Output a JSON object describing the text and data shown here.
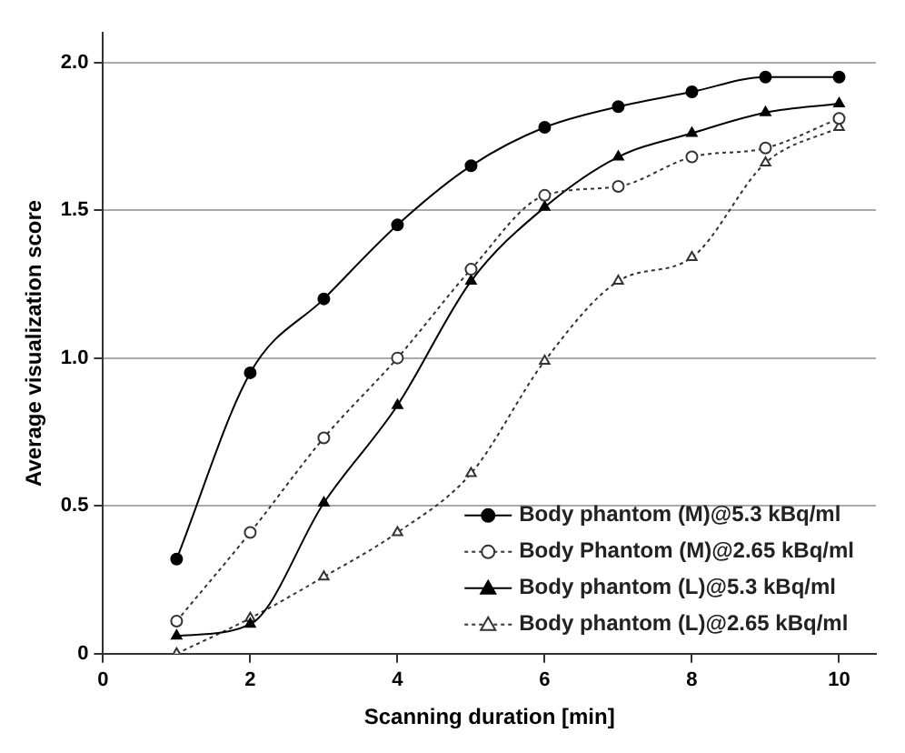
{
  "chart_data": {
    "type": "line",
    "xlabel": "Scanning duration [min]",
    "ylabel": "Average visualization score",
    "x": [
      1,
      2,
      3,
      4,
      5,
      6,
      7,
      8,
      9,
      10
    ],
    "xlim": [
      0,
      10.5
    ],
    "xticks": [
      0,
      2,
      4,
      6,
      8,
      10
    ],
    "ylim": [
      0,
      2.1
    ],
    "yticks": [
      0,
      0.5,
      {
        "value": 1,
        "label": "1.0"
      },
      1.5,
      {
        "value": 2,
        "label": "2.0"
      }
    ],
    "grid": "y",
    "legend": "bottom right",
    "series": [
      {
        "name": "Body phantom (M)@5.3 kBq/ml",
        "color": "#000000",
        "marker": "circle",
        "line_style": "solid",
        "values": [
          0.32,
          0.95,
          1.2,
          1.45,
          1.65,
          1.78,
          1.85,
          1.9,
          1.95,
          1.95
        ]
      },
      {
        "name": "Body Phantom (M)@2.65 kBq/ml",
        "color": "#333333",
        "marker": "circle",
        "line_style": "dotted",
        "values": [
          0.11,
          0.41,
          0.73,
          1.0,
          1.3,
          1.55,
          1.58,
          1.68,
          1.71,
          1.81
        ]
      },
      {
        "name": "Body phantom (L)@5.3 kBq/ml",
        "color": "#000000",
        "marker": "triangle",
        "line_style": "solid",
        "values": [
          0.06,
          0.1,
          0.51,
          0.84,
          1.26,
          1.51,
          1.68,
          1.76,
          1.83,
          1.86
        ]
      },
      {
        "name": "Body phantom (L)@2.65 kBq/ml",
        "color": "#333333",
        "marker": "triangle",
        "line_style": "dotted",
        "values": [
          0,
          0.12,
          0.26,
          0.41,
          0.61,
          0.99,
          1.26,
          1.34,
          1.66,
          1.78
        ]
      }
    ]
  }
}
